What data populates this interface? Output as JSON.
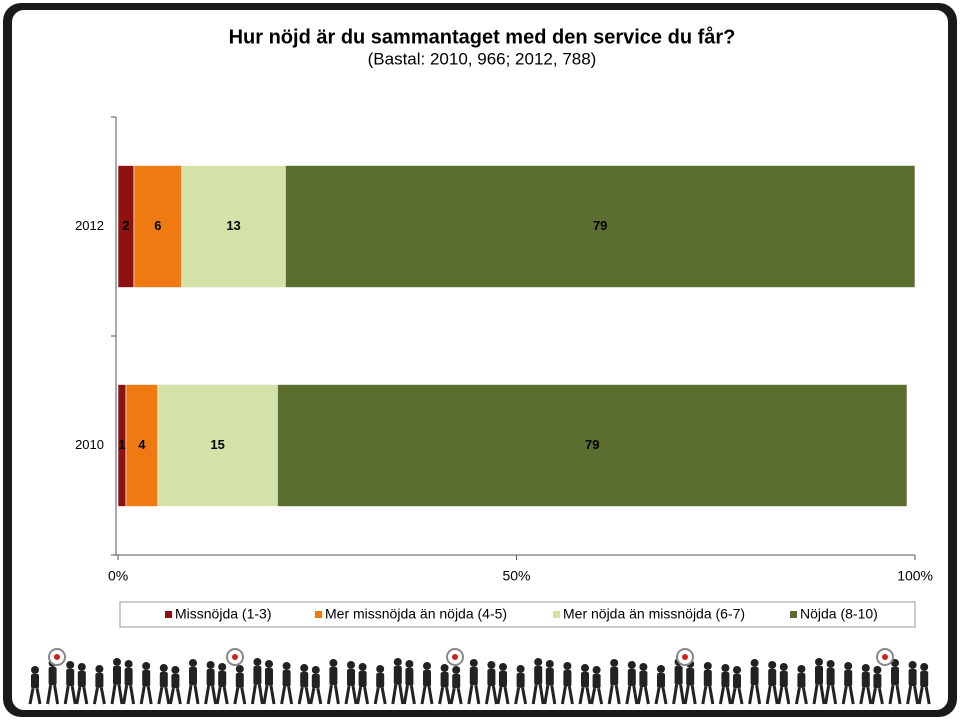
{
  "chart_data": {
    "type": "stacked_barh",
    "title": "Hur nöjd är du sammantaget med den service du får?",
    "subtitle": "(Bastal: 2010, 966; 2012, 788)",
    "categories": [
      "2012",
      "2010"
    ],
    "series": [
      {
        "name": "Missnöjda (1-3)",
        "color": "#8e1212",
        "values": [
          2,
          1
        ]
      },
      {
        "name": "Mer missnöjda än nöjda (4-5)",
        "color": "#f07a12",
        "values": [
          6,
          4
        ]
      },
      {
        "name": "Mer nöjda än missnöjda (6-7)",
        "color": "#d3e2a6",
        "values": [
          13,
          15
        ]
      },
      {
        "name": "Nöjda (8-10)",
        "color": "#5b6e2f",
        "values": [
          79,
          79
        ]
      }
    ],
    "xlim": [
      0,
      100
    ],
    "xticks": [
      {
        "value": 0,
        "label": "0%"
      },
      {
        "value": 50,
        "label": "50%"
      },
      {
        "value": 100,
        "label": "100%"
      }
    ],
    "legend": "bottom"
  }
}
